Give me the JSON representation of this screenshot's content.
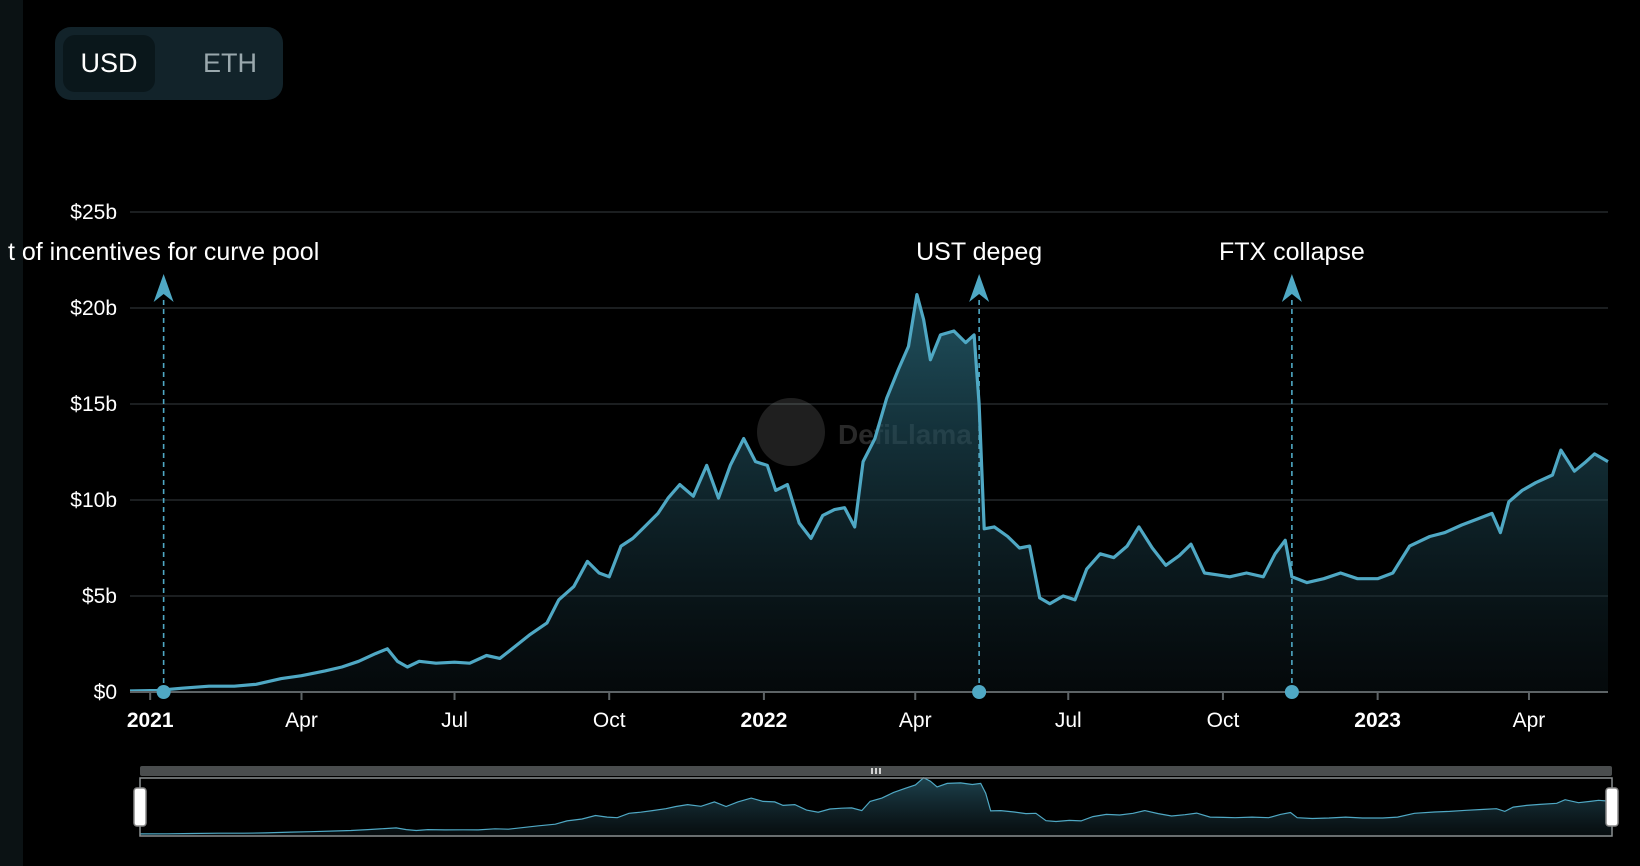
{
  "toggle": {
    "options": [
      "USD",
      "ETH"
    ],
    "selected": "USD"
  },
  "watermark": "DefiLlama",
  "colors": {
    "line": "#4fa8c4",
    "grid": "#24292b",
    "axis": "#5d6366",
    "brush": "#8a8f91",
    "brush_bar": "#4a4d4e",
    "background": "#000000"
  },
  "chart_data": {
    "type": "area",
    "title": "",
    "xlabel": "",
    "ylabel": "",
    "x_range": [
      "2020-12-20",
      "2023-05-18"
    ],
    "ylim": [
      0,
      25
    ],
    "y_unit": "billion USD",
    "y_ticks": [
      {
        "value": 0,
        "label": "$0"
      },
      {
        "value": 5,
        "label": "$5b"
      },
      {
        "value": 10,
        "label": "$10b"
      },
      {
        "value": 15,
        "label": "$15b"
      },
      {
        "value": 20,
        "label": "$20b"
      },
      {
        "value": 25,
        "label": "$25b"
      }
    ],
    "x_ticks": [
      {
        "date": "2021-01-01",
        "label": "2021",
        "major": true
      },
      {
        "date": "2021-04-01",
        "label": "Apr",
        "major": false
      },
      {
        "date": "2021-07-01",
        "label": "Jul",
        "major": false
      },
      {
        "date": "2021-10-01",
        "label": "Oct",
        "major": false
      },
      {
        "date": "2022-01-01",
        "label": "2022",
        "major": true
      },
      {
        "date": "2022-04-01",
        "label": "Apr",
        "major": false
      },
      {
        "date": "2022-07-01",
        "label": "Jul",
        "major": false
      },
      {
        "date": "2022-10-01",
        "label": "Oct",
        "major": false
      },
      {
        "date": "2023-01-01",
        "label": "2023",
        "major": true
      },
      {
        "date": "2023-04-01",
        "label": "Apr",
        "major": false
      }
    ],
    "grid": true,
    "legend": "none",
    "series": [
      {
        "points": [
          [
            "2020-12-20",
            0.05
          ],
          [
            "2021-01-05",
            0.08
          ],
          [
            "2021-01-20",
            0.2
          ],
          [
            "2021-02-05",
            0.3
          ],
          [
            "2021-02-20",
            0.3
          ],
          [
            "2021-03-05",
            0.4
          ],
          [
            "2021-03-20",
            0.7
          ],
          [
            "2021-04-01",
            0.85
          ],
          [
            "2021-04-15",
            1.1
          ],
          [
            "2021-04-25",
            1.3
          ],
          [
            "2021-05-05",
            1.6
          ],
          [
            "2021-05-15",
            2.0
          ],
          [
            "2021-05-22",
            2.25
          ],
          [
            "2021-05-28",
            1.6
          ],
          [
            "2021-06-03",
            1.3
          ],
          [
            "2021-06-10",
            1.6
          ],
          [
            "2021-06-20",
            1.5
          ],
          [
            "2021-07-01",
            1.55
          ],
          [
            "2021-07-10",
            1.5
          ],
          [
            "2021-07-20",
            1.9
          ],
          [
            "2021-07-28",
            1.75
          ],
          [
            "2021-08-05",
            2.3
          ],
          [
            "2021-08-15",
            3.0
          ],
          [
            "2021-08-25",
            3.6
          ],
          [
            "2021-09-01",
            4.8
          ],
          [
            "2021-09-10",
            5.5
          ],
          [
            "2021-09-18",
            6.8
          ],
          [
            "2021-09-25",
            6.2
          ],
          [
            "2021-10-01",
            6.0
          ],
          [
            "2021-10-08",
            7.6
          ],
          [
            "2021-10-15",
            8.0
          ],
          [
            "2021-10-22",
            8.6
          ],
          [
            "2021-10-30",
            9.3
          ],
          [
            "2021-11-05",
            10.1
          ],
          [
            "2021-11-12",
            10.8
          ],
          [
            "2021-11-20",
            10.2
          ],
          [
            "2021-11-28",
            11.8
          ],
          [
            "2021-12-05",
            10.1
          ],
          [
            "2021-12-12",
            11.8
          ],
          [
            "2021-12-20",
            13.2
          ],
          [
            "2021-12-27",
            12.0
          ],
          [
            "2022-01-03",
            11.8
          ],
          [
            "2022-01-08",
            10.5
          ],
          [
            "2022-01-15",
            10.8
          ],
          [
            "2022-01-22",
            8.8
          ],
          [
            "2022-01-29",
            8.0
          ],
          [
            "2022-02-05",
            9.2
          ],
          [
            "2022-02-12",
            9.5
          ],
          [
            "2022-02-18",
            9.6
          ],
          [
            "2022-02-24",
            8.6
          ],
          [
            "2022-03-01",
            12.0
          ],
          [
            "2022-03-08",
            13.2
          ],
          [
            "2022-03-15",
            15.3
          ],
          [
            "2022-03-22",
            16.8
          ],
          [
            "2022-03-28",
            18.0
          ],
          [
            "2022-04-02",
            20.7
          ],
          [
            "2022-04-06",
            19.4
          ],
          [
            "2022-04-10",
            17.3
          ],
          [
            "2022-04-16",
            18.6
          ],
          [
            "2022-04-24",
            18.8
          ],
          [
            "2022-05-01",
            18.2
          ],
          [
            "2022-05-06",
            18.6
          ],
          [
            "2022-05-09",
            15.0
          ],
          [
            "2022-05-12",
            8.5
          ],
          [
            "2022-05-18",
            8.6
          ],
          [
            "2022-05-26",
            8.1
          ],
          [
            "2022-06-02",
            7.5
          ],
          [
            "2022-06-08",
            7.6
          ],
          [
            "2022-06-14",
            4.9
          ],
          [
            "2022-06-20",
            4.6
          ],
          [
            "2022-06-28",
            5.0
          ],
          [
            "2022-07-05",
            4.8
          ],
          [
            "2022-07-12",
            6.4
          ],
          [
            "2022-07-20",
            7.2
          ],
          [
            "2022-07-28",
            7.0
          ],
          [
            "2022-08-05",
            7.6
          ],
          [
            "2022-08-12",
            8.6
          ],
          [
            "2022-08-20",
            7.5
          ],
          [
            "2022-08-28",
            6.6
          ],
          [
            "2022-09-05",
            7.1
          ],
          [
            "2022-09-12",
            7.7
          ],
          [
            "2022-09-20",
            6.2
          ],
          [
            "2022-09-28",
            6.1
          ],
          [
            "2022-10-05",
            6.0
          ],
          [
            "2022-10-15",
            6.2
          ],
          [
            "2022-10-25",
            6.0
          ],
          [
            "2022-11-01",
            7.2
          ],
          [
            "2022-11-07",
            7.9
          ],
          [
            "2022-11-11",
            6.0
          ],
          [
            "2022-11-20",
            5.7
          ],
          [
            "2022-11-30",
            5.9
          ],
          [
            "2022-12-10",
            6.2
          ],
          [
            "2022-12-20",
            5.9
          ],
          [
            "2023-01-01",
            5.9
          ],
          [
            "2023-01-10",
            6.2
          ],
          [
            "2023-01-20",
            7.6
          ],
          [
            "2023-02-01",
            8.1
          ],
          [
            "2023-02-10",
            8.3
          ],
          [
            "2023-02-20",
            8.7
          ],
          [
            "2023-03-01",
            9.0
          ],
          [
            "2023-03-10",
            9.3
          ],
          [
            "2023-03-15",
            8.3
          ],
          [
            "2023-03-20",
            9.9
          ],
          [
            "2023-03-28",
            10.5
          ],
          [
            "2023-04-05",
            10.9
          ],
          [
            "2023-04-15",
            11.3
          ],
          [
            "2023-04-20",
            12.6
          ],
          [
            "2023-04-28",
            11.5
          ],
          [
            "2023-05-05",
            12.0
          ],
          [
            "2023-05-10",
            12.4
          ],
          [
            "2023-05-18",
            12.0
          ]
        ]
      }
    ],
    "annotations": [
      {
        "date": "2021-01-09",
        "label": "t of incentives for curve pool"
      },
      {
        "date": "2022-05-09",
        "label": "UST depeg"
      },
      {
        "date": "2022-11-11",
        "label": "FTX collapse"
      }
    ]
  }
}
